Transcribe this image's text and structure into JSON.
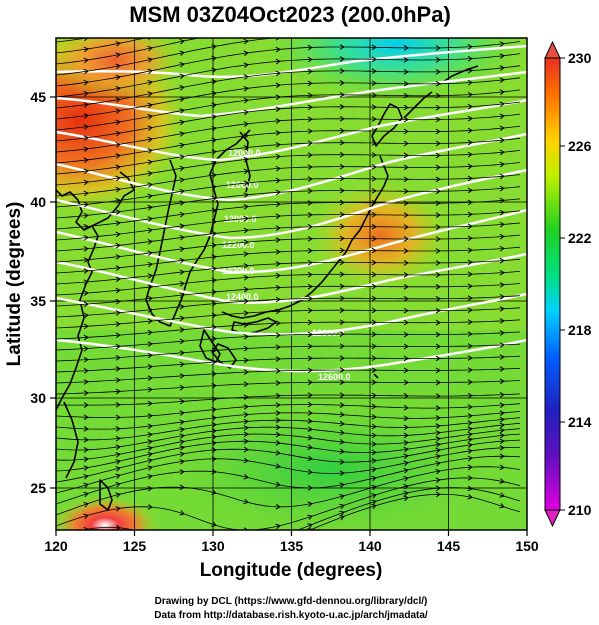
{
  "title": "MSM 03Z04Oct2023 (200.0hPa)",
  "xlabel": "Longitude (degrees)",
  "ylabel": "Latitude  (degrees)",
  "x_ticks": [
    "120",
    "125",
    "130",
    "135",
    "140",
    "145",
    "150"
  ],
  "y_ticks": [
    "25",
    "30",
    "35",
    "40",
    "45"
  ],
  "colorbar": {
    "ticks": [
      "230",
      "226",
      "222",
      "218",
      "214",
      "210"
    ],
    "range": [
      210,
      230
    ],
    "colors": [
      "#e000e0",
      "#2020c0",
      "#0040ff",
      "#00d0ff",
      "#20e020",
      "#c0ff00",
      "#ffb000",
      "#ff5000",
      "#e83020"
    ]
  },
  "contour_labels": [
    "12000.0",
    "12000.0",
    "12000.0",
    "12200.0",
    "12200.0",
    "12400.0",
    "12600.0",
    "12600.0"
  ],
  "credits": {
    "line1": "Drawing by DCL (https://www.gfd-dennou.org/library/dcl/)",
    "line2": "Data from http://database.rish.kyoto-u.ac.jp/arch/jmadata/"
  },
  "chart_data": {
    "type": "heatmap",
    "title": "MSM 03Z04Oct2023 (200.0hPa)",
    "xlabel": "Longitude (degrees)",
    "ylabel": "Latitude  (degrees)",
    "xlim": [
      120,
      150
    ],
    "ylim": [
      22.5,
      47.5
    ],
    "zlim": [
      210,
      230
    ],
    "fields": [
      "temperature (shaded)",
      "geopotential height (white contours)",
      "wind (streamlines)"
    ],
    "hot_spots": [
      {
        "lon": 121,
        "lat": 45,
        "value": 228
      },
      {
        "lon": 123,
        "lat": 47,
        "value": 227
      },
      {
        "lon": 140,
        "lat": 39,
        "value": 227
      },
      {
        "lon": 123,
        "lat": 23,
        "value": 230
      }
    ],
    "cold_spots": [
      {
        "lon": 140,
        "lat": 47,
        "value": 219
      }
    ],
    "grid": true
  }
}
